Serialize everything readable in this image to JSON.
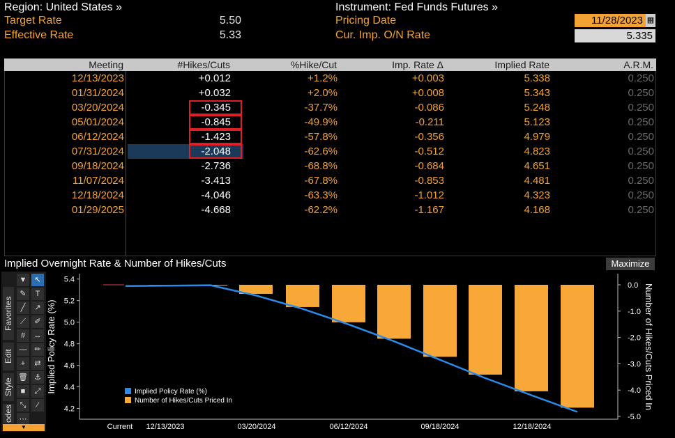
{
  "header": {
    "region_label": "Region: United States »",
    "instrument_label": "Instrument: Fed Funds Futures »",
    "target_rate_label": "Target Rate",
    "target_rate_value": "5.50",
    "effective_rate_label": "Effective Rate",
    "effective_rate_value": "5.33",
    "pricing_date_label": "Pricing Date",
    "pricing_date_value": "11/28/2023",
    "cur_imp_label": "Cur. Imp. O/N Rate",
    "cur_imp_value": "5.335",
    "calendar_icon": "calendar-icon"
  },
  "table": {
    "columns": [
      "Meeting",
      "#Hikes/Cuts",
      "%Hike/Cut",
      "Imp. Rate Δ",
      "Implied Rate",
      "A.R.M."
    ],
    "rows": [
      {
        "meeting": "12/13/2023",
        "hikes": "+0.012",
        "pct": "+1.2%",
        "delta": "+0.003",
        "implied": "5.338",
        "arm": "0.250"
      },
      {
        "meeting": "01/31/2024",
        "hikes": "+0.032",
        "pct": "+2.0%",
        "delta": "+0.008",
        "implied": "5.343",
        "arm": "0.250"
      },
      {
        "meeting": "03/20/2024",
        "hikes": "-0.345",
        "pct": "-37.7%",
        "delta": "-0.086",
        "implied": "5.248",
        "arm": "0.250"
      },
      {
        "meeting": "05/01/2024",
        "hikes": "-0.845",
        "pct": "-49.9%",
        "delta": "-0.211",
        "implied": "5.123",
        "arm": "0.250"
      },
      {
        "meeting": "06/12/2024",
        "hikes": "-1.423",
        "pct": "-57.8%",
        "delta": "-0.356",
        "implied": "4.979",
        "arm": "0.250"
      },
      {
        "meeting": "07/31/2024",
        "hikes": "-2.048",
        "pct": "-62.6%",
        "delta": "-0.512",
        "implied": "4.823",
        "arm": "0.250"
      },
      {
        "meeting": "09/18/2024",
        "hikes": "-2.736",
        "pct": "-68.8%",
        "delta": "-0.684",
        "implied": "4.651",
        "arm": "0.250"
      },
      {
        "meeting": "11/07/2024",
        "hikes": "-3.413",
        "pct": "-67.8%",
        "delta": "-0.853",
        "implied": "4.481",
        "arm": "0.250"
      },
      {
        "meeting": "12/18/2024",
        "hikes": "-4.046",
        "pct": "-63.3%",
        "delta": "-1.012",
        "implied": "4.323",
        "arm": "0.250"
      },
      {
        "meeting": "01/29/2025",
        "hikes": "-4.668",
        "pct": "-62.2%",
        "delta": "-1.167",
        "implied": "4.168",
        "arm": "0.250"
      }
    ],
    "selected_row": 5,
    "highlighted_rows": [
      2,
      3,
      4,
      5
    ]
  },
  "chart_panel": {
    "title": "Implied Overnight Rate & Number of Hikes/Cuts",
    "maximize_label": "Maximize",
    "toolbar_tabs": [
      "Favorites",
      "Edit",
      "Style",
      "odes"
    ],
    "toolbar_icons": [
      "menu-down-icon",
      "pointer-icon",
      "pencil-icon",
      "text-icon",
      "line-icon",
      "arrow-icon",
      "trend-icon",
      "brush-icon",
      "hash-icon",
      "range-icon",
      "minus-icon",
      "pen-icon",
      "plus-icon",
      "flip-icon",
      "trash-icon",
      "anchor-icon",
      "square-icon",
      "expand-icon",
      "shrink-icon",
      "slash-icon",
      "more-icon"
    ]
  },
  "chart_data": {
    "type": "bar+line",
    "title": "Implied Overnight Rate & Number of Hikes/Cuts",
    "categories": [
      "Current",
      "12/13/2023",
      "01/31/2024",
      "03/20/2024",
      "05/01/2024",
      "06/12/2024",
      "07/31/2024",
      "09/18/2024",
      "11/07/2024",
      "12/18/2024",
      "01/29/2025"
    ],
    "x_tick_labels": [
      "Current",
      "12/13/2023",
      "03/20/2024",
      "06/12/2024",
      "09/18/2024",
      "12/18/2024"
    ],
    "series": [
      {
        "name": "Implied Policy Rate (%)",
        "type": "line",
        "axis": "left",
        "color": "#2b8be8",
        "values": [
          5.335,
          5.338,
          5.343,
          5.248,
          5.123,
          4.979,
          4.823,
          4.651,
          4.481,
          4.323,
          4.168
        ]
      },
      {
        "name": "Number of Hikes/Cuts Priced In",
        "type": "bar",
        "axis": "right",
        "color": "#f7a838",
        "values": [
          0,
          0.012,
          0.032,
          -0.345,
          -0.845,
          -1.423,
          -2.048,
          -2.736,
          -3.413,
          -4.046,
          -4.668
        ]
      }
    ],
    "y_left": {
      "label": "Implied Policy Rate (%)",
      "ticks": [
        4.2,
        4.4,
        4.6,
        4.8,
        5.0,
        5.2,
        5.4
      ],
      "range": [
        4.1,
        5.45
      ]
    },
    "y_right": {
      "label": "Number of Hikes/Cuts Priced In",
      "ticks": [
        "0.0",
        "-1.0",
        "-2.0",
        "-3.0",
        "-4.0",
        "-5.0"
      ],
      "range": [
        -5.0,
        0.0
      ]
    },
    "legend": [
      "Implied Policy Rate (%)",
      "Number of Hikes/Cuts Priced In"
    ],
    "legend_position": "bottom-left"
  }
}
